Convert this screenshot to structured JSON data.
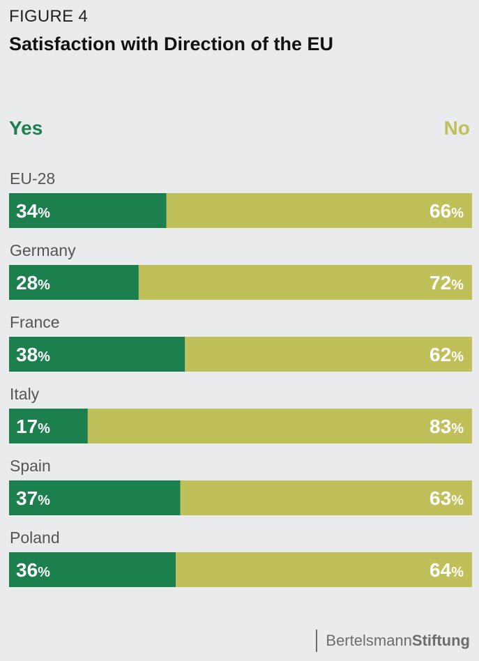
{
  "figure_label": "FIGURE 4",
  "title": "Satisfaction with Direction of the EU",
  "legend": {
    "yes_label": "Yes",
    "no_label": "No"
  },
  "colors": {
    "yes": "#1c7f4e",
    "no": "#c0c05a",
    "label": "#555555",
    "bar_text": "#ffffff"
  },
  "chart_data": {
    "type": "bar",
    "orientation": "horizontal-stacked-100",
    "title": "Satisfaction with Direction of the EU",
    "categories": [
      "EU-28",
      "Germany",
      "France",
      "Italy",
      "Spain",
      "Poland"
    ],
    "series": [
      {
        "name": "Yes",
        "values": [
          34,
          28,
          38,
          17,
          37,
          36
        ]
      },
      {
        "name": "No",
        "values": [
          66,
          72,
          62,
          83,
          63,
          64
        ]
      }
    ],
    "unit": "%",
    "xlim": [
      0,
      100
    ],
    "grid": false,
    "legend_position": "top"
  },
  "footer": {
    "brand_light": "Bertelsmann",
    "brand_bold": "Stiftung"
  }
}
